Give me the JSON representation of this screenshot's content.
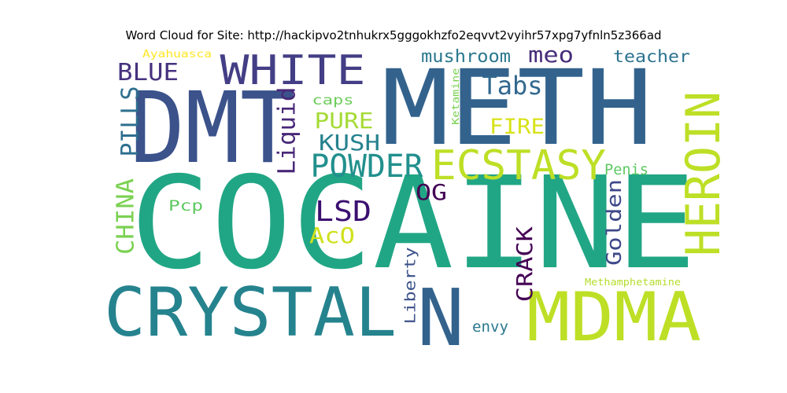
{
  "title": "Word Cloud for Site: http://hackipvo2tnhukrx5gggokhzfo2eqvvt2vyihr57xpg7yfnln5z366ad",
  "words": [
    {
      "text": "COCAINE",
      "color": "#21a685"
    },
    {
      "text": "METH",
      "color": "#33638d"
    },
    {
      "text": "DMT",
      "color": "#3b528b"
    },
    {
      "text": "CRYSTAL",
      "color": "#25838e"
    },
    {
      "text": "MDMA",
      "color": "#bddf26"
    },
    {
      "text": "HEROIN",
      "color": "#bddf26"
    },
    {
      "text": "N",
      "color": "#33638d"
    },
    {
      "text": "WHITE",
      "color": "#433e85"
    },
    {
      "text": "ECSTASY",
      "color": "#bddf26"
    },
    {
      "text": "POWDER",
      "color": "#21908d"
    },
    {
      "text": "LSD",
      "color": "#3b0f70"
    },
    {
      "text": "BLUE",
      "color": "#46327e"
    },
    {
      "text": "PILLS",
      "color": "#2e6f8e"
    },
    {
      "text": "CHINA",
      "color": "#7ad151"
    },
    {
      "text": "Liquid",
      "color": "#482878"
    },
    {
      "text": "Tabs",
      "color": "#31688e"
    },
    {
      "text": "PURE",
      "color": "#a5db36"
    },
    {
      "text": "KUSH",
      "color": "#26828e"
    },
    {
      "text": "OG",
      "color": "#440154"
    },
    {
      "text": "AcO",
      "color": "#d0e11c"
    },
    {
      "text": "CRACK",
      "color": "#440154"
    },
    {
      "text": "Golden",
      "color": "#3e4989"
    },
    {
      "text": "meo",
      "color": "#472d7b"
    },
    {
      "text": "mushroom",
      "color": "#2a788e"
    },
    {
      "text": "teacher",
      "color": "#2c728e"
    },
    {
      "text": "FIRE",
      "color": "#d8e219"
    },
    {
      "text": "caps",
      "color": "#6ccd5a"
    },
    {
      "text": "Ketamine",
      "color": "#7ad151"
    },
    {
      "text": "Ayahuasca",
      "color": "#fde725"
    },
    {
      "text": "Pcp",
      "color": "#5ec962"
    },
    {
      "text": "Penis",
      "color": "#5ec962"
    },
    {
      "text": "Liberty",
      "color": "#3b528b"
    },
    {
      "text": "envy",
      "color": "#2a788e"
    },
    {
      "text": "Methamphetamine",
      "color": "#b5de2b"
    }
  ]
}
